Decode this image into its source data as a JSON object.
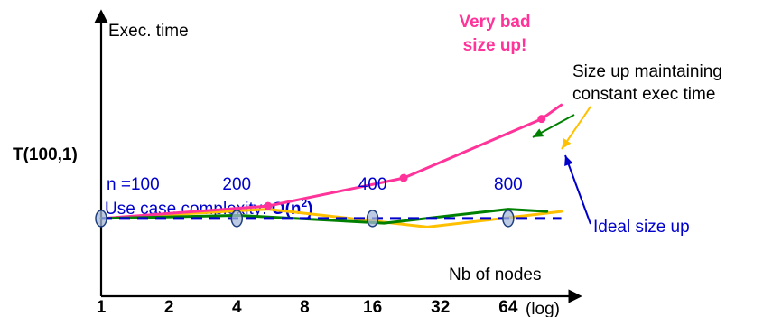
{
  "chart_data": {
    "type": "line",
    "title": "",
    "ylabel": "Exec. time",
    "xlabel": "Nb of nodes",
    "xscale_label": "(log)",
    "y_reference_label": "T(100,1)",
    "x_tick_labels": [
      "1",
      "2",
      "4",
      "8",
      "16",
      "32",
      "64"
    ],
    "x_ticks": [
      1,
      2,
      4,
      8,
      16,
      32,
      64
    ],
    "xscale": "log2",
    "xlim": [
      1,
      128
    ],
    "ylim": [
      0,
      3.6
    ],
    "grid": false,
    "colors": {
      "very_bad": "#ff3399",
      "constant": "#ffc000",
      "green": "#008000",
      "ideal": "#0000cc",
      "problem_size_text": "#0000cc",
      "axis": "#000000",
      "marker_fill": "#a6b8d9",
      "marker_stroke": "#1f3f7f"
    },
    "problem_size_labels": [
      {
        "text": "n =100",
        "x": 1
      },
      {
        "text": "200",
        "x": 4
      },
      {
        "text": "400",
        "x": 16
      },
      {
        "text": "800",
        "x": 64
      }
    ],
    "problem_size_markers": [
      1,
      4,
      16,
      64
    ],
    "complexity_label": "Use case complexity: ",
    "complexity_formula": "O(n",
    "complexity_exponent": "2",
    "complexity_close": ")",
    "series": [
      {
        "id": "very_bad",
        "name": "Very bad size up!",
        "name_lines": [
          "Very bad",
          "size up!"
        ],
        "points": [
          [
            1,
            1.0
          ],
          [
            5.5,
            1.16
          ],
          [
            22,
            1.52
          ],
          [
            90,
            2.28
          ]
        ],
        "point_markers": [
          [
            5.5,
            1.16
          ],
          [
            22,
            1.52
          ],
          [
            90,
            2.28
          ]
        ],
        "extend_to": [
          110,
          2.46
        ]
      },
      {
        "id": "constant",
        "name": "Size up maintaining constant exec time",
        "name_lines": [
          "Size up maintaining",
          "constant exec time"
        ],
        "points": [
          [
            1,
            1.0
          ],
          [
            5.5,
            1.12
          ],
          [
            28,
            0.89
          ],
          [
            110,
            1.09
          ]
        ]
      },
      {
        "id": "green",
        "name": "",
        "points": [
          [
            1,
            1.0
          ],
          [
            4,
            1.04
          ],
          [
            18,
            0.94
          ],
          [
            64,
            1.12
          ],
          [
            95,
            1.09
          ]
        ]
      },
      {
        "id": "ideal",
        "name": "Ideal size up",
        "points": [
          [
            1,
            1.0
          ],
          [
            110,
            1.0
          ]
        ]
      }
    ]
  }
}
